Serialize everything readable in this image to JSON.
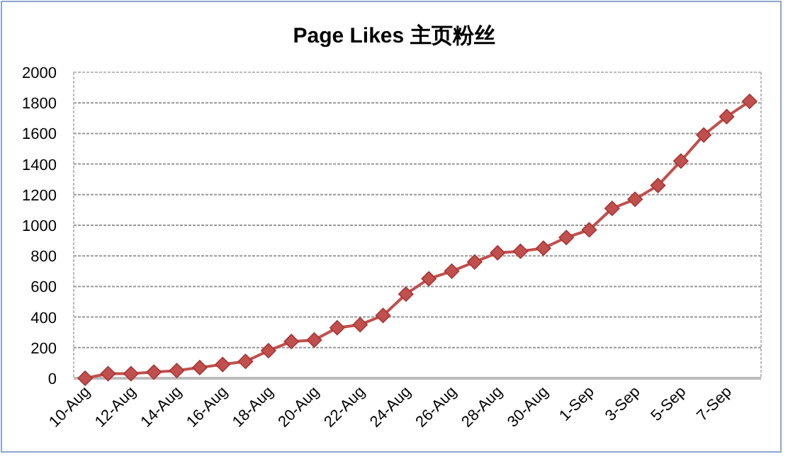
{
  "chart_data": {
    "type": "line",
    "title": "Page Likes  主页粉丝",
    "categories": [
      "10-Aug",
      null,
      "12-Aug",
      null,
      "14-Aug",
      null,
      "16-Aug",
      null,
      "18-Aug",
      null,
      "20-Aug",
      null,
      "22-Aug",
      null,
      "24-Aug",
      null,
      "26-Aug",
      null,
      "28-Aug",
      null,
      "30-Aug",
      null,
      "1-Sep",
      null,
      "3-Sep",
      null,
      "5-Sep",
      null,
      "7-Sep",
      null
    ],
    "series": [
      {
        "color": "#c0504d",
        "values": [
          0,
          30,
          30,
          40,
          50,
          70,
          90,
          110,
          180,
          240,
          250,
          330,
          350,
          410,
          550,
          650,
          700,
          760,
          820,
          830,
          850,
          920,
          970,
          1110,
          1170,
          1260,
          1420,
          1590,
          1710,
          1810
        ]
      }
    ],
    "ylim": [
      0,
      2000
    ],
    "yticks": [
      0,
      200,
      400,
      600,
      800,
      1000,
      1200,
      1400,
      1600,
      1800,
      2000
    ],
    "grid": "y",
    "marker": "diamond"
  }
}
